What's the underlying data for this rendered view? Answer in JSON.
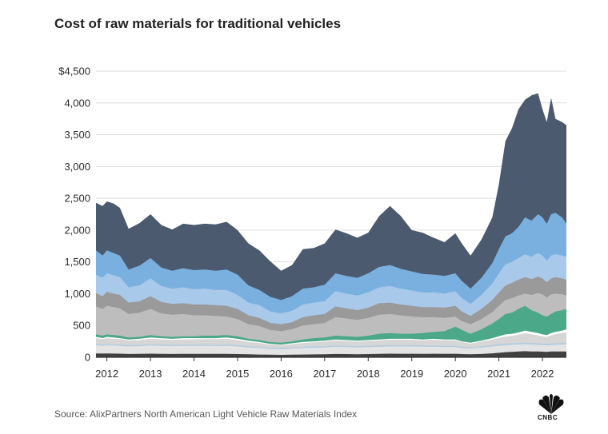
{
  "title": "Cost of raw materials for traditional vehicles",
  "source": "Source: AlixPartners North American Light Vehicle Raw Materials Index",
  "logo_text": "CNBC",
  "colors": {
    "total": "#4b5a6e",
    "layer2": "#7ab0e0",
    "layer3": "#a8c9ea",
    "layer4": "#9a9a9a",
    "layer5": "#bdbdbd",
    "layer6": "#4ba888",
    "layer7": "#ffffff",
    "layer8": "#d6d6d6",
    "layer9": "#b5cde0",
    "layer10": "#e4e4e4",
    "layer11": "#404040",
    "gridline": "#dddddd",
    "baseline": "#333333"
  },
  "chart_data": {
    "type": "area",
    "title": "Cost of raw materials for traditional vehicles",
    "ylim": [
      0,
      4500
    ],
    "xlim": [
      2011.75,
      2022.55
    ],
    "y_ticks": [
      0,
      500,
      1000,
      1500,
      2000,
      2500,
      3000,
      3500,
      4000,
      4500
    ],
    "y_tick_labels": [
      "0",
      "500",
      "1,000",
      "1,500",
      "2,000",
      "2,500",
      "3,000",
      "3,500",
      "4,000",
      "$4,500"
    ],
    "x_ticks": [
      2012,
      2013,
      2014,
      2015,
      2016,
      2017,
      2018,
      2019,
      2020,
      2021,
      2022
    ],
    "x_tick_labels": [
      "2012",
      "2013",
      "2014",
      "2015",
      "2016",
      "2017",
      "2018",
      "2019",
      "2020",
      "2021",
      "2022"
    ],
    "grid": true,
    "x": [
      2011.75,
      2011.9,
      2012.0,
      2012.15,
      2012.3,
      2012.5,
      2012.75,
      2013.0,
      2013.25,
      2013.5,
      2013.75,
      2014.0,
      2014.25,
      2014.5,
      2014.75,
      2015.0,
      2015.25,
      2015.5,
      2015.75,
      2016.0,
      2016.25,
      2016.5,
      2016.75,
      2017.0,
      2017.25,
      2017.5,
      2017.75,
      2018.0,
      2018.25,
      2018.5,
      2018.75,
      2019.0,
      2019.25,
      2019.5,
      2019.75,
      2020.0,
      2020.15,
      2020.35,
      2020.6,
      2020.85,
      2021.0,
      2021.15,
      2021.3,
      2021.45,
      2021.6,
      2021.75,
      2021.9,
      2022.0,
      2022.1,
      2022.2,
      2022.3,
      2022.45,
      2022.55
    ],
    "series": [
      {
        "values": [
          2430,
          2380,
          2450,
          2420,
          2350,
          2020,
          2110,
          2250,
          2080,
          2010,
          2100,
          2080,
          2100,
          2090,
          2130,
          2000,
          1790,
          1680,
          1510,
          1360,
          1450,
          1700,
          1720,
          1790,
          2010,
          1950,
          1880,
          1960,
          2220,
          2380,
          2220,
          2000,
          1960,
          1880,
          1810,
          1950,
          1790,
          1600,
          1850,
          2200,
          2720,
          3400,
          3600,
          3900,
          4050,
          4120,
          4150,
          3900,
          3700,
          4080,
          3750,
          3700,
          3650
        ]
      },
      {
        "values": [
          1680,
          1600,
          1680,
          1640,
          1600,
          1380,
          1440,
          1560,
          1410,
          1360,
          1400,
          1370,
          1380,
          1360,
          1380,
          1300,
          1130,
          1060,
          950,
          900,
          960,
          1080,
          1100,
          1140,
          1320,
          1280,
          1250,
          1320,
          1420,
          1450,
          1390,
          1350,
          1310,
          1300,
          1280,
          1320,
          1200,
          1080,
          1250,
          1480,
          1700,
          1900,
          1950,
          2050,
          2200,
          2150,
          2250,
          2200,
          2100,
          2250,
          2270,
          2200,
          2100
        ]
      },
      {
        "values": [
          1300,
          1250,
          1320,
          1290,
          1260,
          1100,
          1130,
          1240,
          1120,
          1080,
          1100,
          1070,
          1080,
          1060,
          1060,
          980,
          860,
          820,
          720,
          690,
          730,
          830,
          860,
          880,
          1040,
          1000,
          970,
          1020,
          1100,
          1120,
          1080,
          1050,
          1020,
          1020,
          1000,
          1040,
          930,
          840,
          980,
          1160,
          1320,
          1460,
          1500,
          1560,
          1620,
          1580,
          1640,
          1600,
          1520,
          1600,
          1620,
          1600,
          1580
        ]
      },
      {
        "values": [
          1010,
          960,
          1030,
          1000,
          980,
          860,
          880,
          960,
          870,
          840,
          850,
          830,
          830,
          820,
          810,
          760,
          660,
          620,
          540,
          520,
          550,
          630,
          660,
          680,
          800,
          770,
          740,
          780,
          850,
          860,
          830,
          810,
          790,
          790,
          780,
          810,
          720,
          650,
          760,
          900,
          1020,
          1130,
          1170,
          1220,
          1260,
          1230,
          1270,
          1240,
          1180,
          1240,
          1260,
          1240,
          1220
        ]
      },
      {
        "values": [
          800,
          760,
          810,
          790,
          770,
          680,
          700,
          760,
          690,
          670,
          680,
          660,
          660,
          650,
          640,
          600,
          520,
          490,
          430,
          410,
          440,
          500,
          520,
          540,
          630,
          610,
          590,
          620,
          670,
          680,
          660,
          640,
          630,
          630,
          620,
          640,
          570,
          520,
          600,
          710,
          810,
          900,
          930,
          970,
          1000,
          980,
          1010,
          990,
          940,
          990,
          1000,
          990,
          970
        ]
      },
      {
        "values": [
          360,
          340,
          360,
          350,
          340,
          310,
          320,
          350,
          330,
          320,
          330,
          330,
          340,
          340,
          350,
          330,
          290,
          270,
          240,
          230,
          250,
          280,
          300,
          310,
          340,
          330,
          320,
          340,
          370,
          380,
          370,
          370,
          380,
          400,
          410,
          480,
          430,
          370,
          440,
          530,
          600,
          680,
          700,
          760,
          810,
          740,
          700,
          660,
          640,
          680,
          720,
          740,
          760
        ]
      },
      {
        "values": [
          320,
          300,
          320,
          310,
          300,
          280,
          290,
          310,
          300,
          290,
          300,
          300,
          300,
          300,
          310,
          290,
          260,
          240,
          210,
          200,
          220,
          240,
          250,
          260,
          280,
          270,
          260,
          270,
          280,
          290,
          290,
          290,
          280,
          290,
          280,
          280,
          250,
          230,
          260,
          300,
          330,
          360,
          370,
          390,
          420,
          400,
          380,
          360,
          350,
          380,
          400,
          420,
          440
        ]
      },
      {
        "values": [
          300,
          285,
          300,
          290,
          285,
          265,
          270,
          290,
          280,
          275,
          280,
          280,
          285,
          285,
          290,
          270,
          240,
          225,
          200,
          190,
          205,
          225,
          235,
          245,
          265,
          255,
          245,
          255,
          265,
          275,
          275,
          275,
          265,
          275,
          265,
          265,
          240,
          215,
          245,
          280,
          305,
          325,
          335,
          355,
          380,
          360,
          345,
          330,
          320,
          345,
          365,
          380,
          395
        ]
      },
      {
        "values": [
          210,
          200,
          210,
          205,
          200,
          190,
          195,
          205,
          200,
          195,
          200,
          200,
          200,
          195,
          200,
          190,
          175,
          165,
          150,
          145,
          155,
          165,
          170,
          175,
          185,
          180,
          175,
          180,
          185,
          190,
          190,
          190,
          185,
          185,
          180,
          180,
          165,
          155,
          170,
          190,
          205,
          215,
          220,
          225,
          230,
          225,
          220,
          215,
          210,
          215,
          220,
          225,
          230
        ]
      },
      {
        "values": [
          190,
          180,
          190,
          185,
          180,
          170,
          175,
          185,
          180,
          175,
          180,
          180,
          180,
          175,
          180,
          170,
          155,
          145,
          130,
          125,
          135,
          145,
          150,
          155,
          165,
          160,
          155,
          160,
          165,
          170,
          170,
          170,
          165,
          165,
          160,
          160,
          145,
          135,
          150,
          170,
          180,
          190,
          195,
          200,
          205,
          200,
          195,
          190,
          185,
          190,
          195,
          200,
          205
        ]
      },
      {
        "values": [
          60,
          58,
          60,
          58,
          56,
          52,
          54,
          56,
          54,
          52,
          54,
          54,
          54,
          53,
          54,
          50,
          46,
          43,
          40,
          38,
          40,
          43,
          45,
          47,
          52,
          50,
          48,
          50,
          54,
          56,
          55,
          55,
          54,
          55,
          54,
          55,
          50,
          46,
          52,
          62,
          70,
          80,
          85,
          90,
          95,
          92,
          90,
          88,
          86,
          90,
          92,
          92,
          92
        ]
      }
    ]
  }
}
